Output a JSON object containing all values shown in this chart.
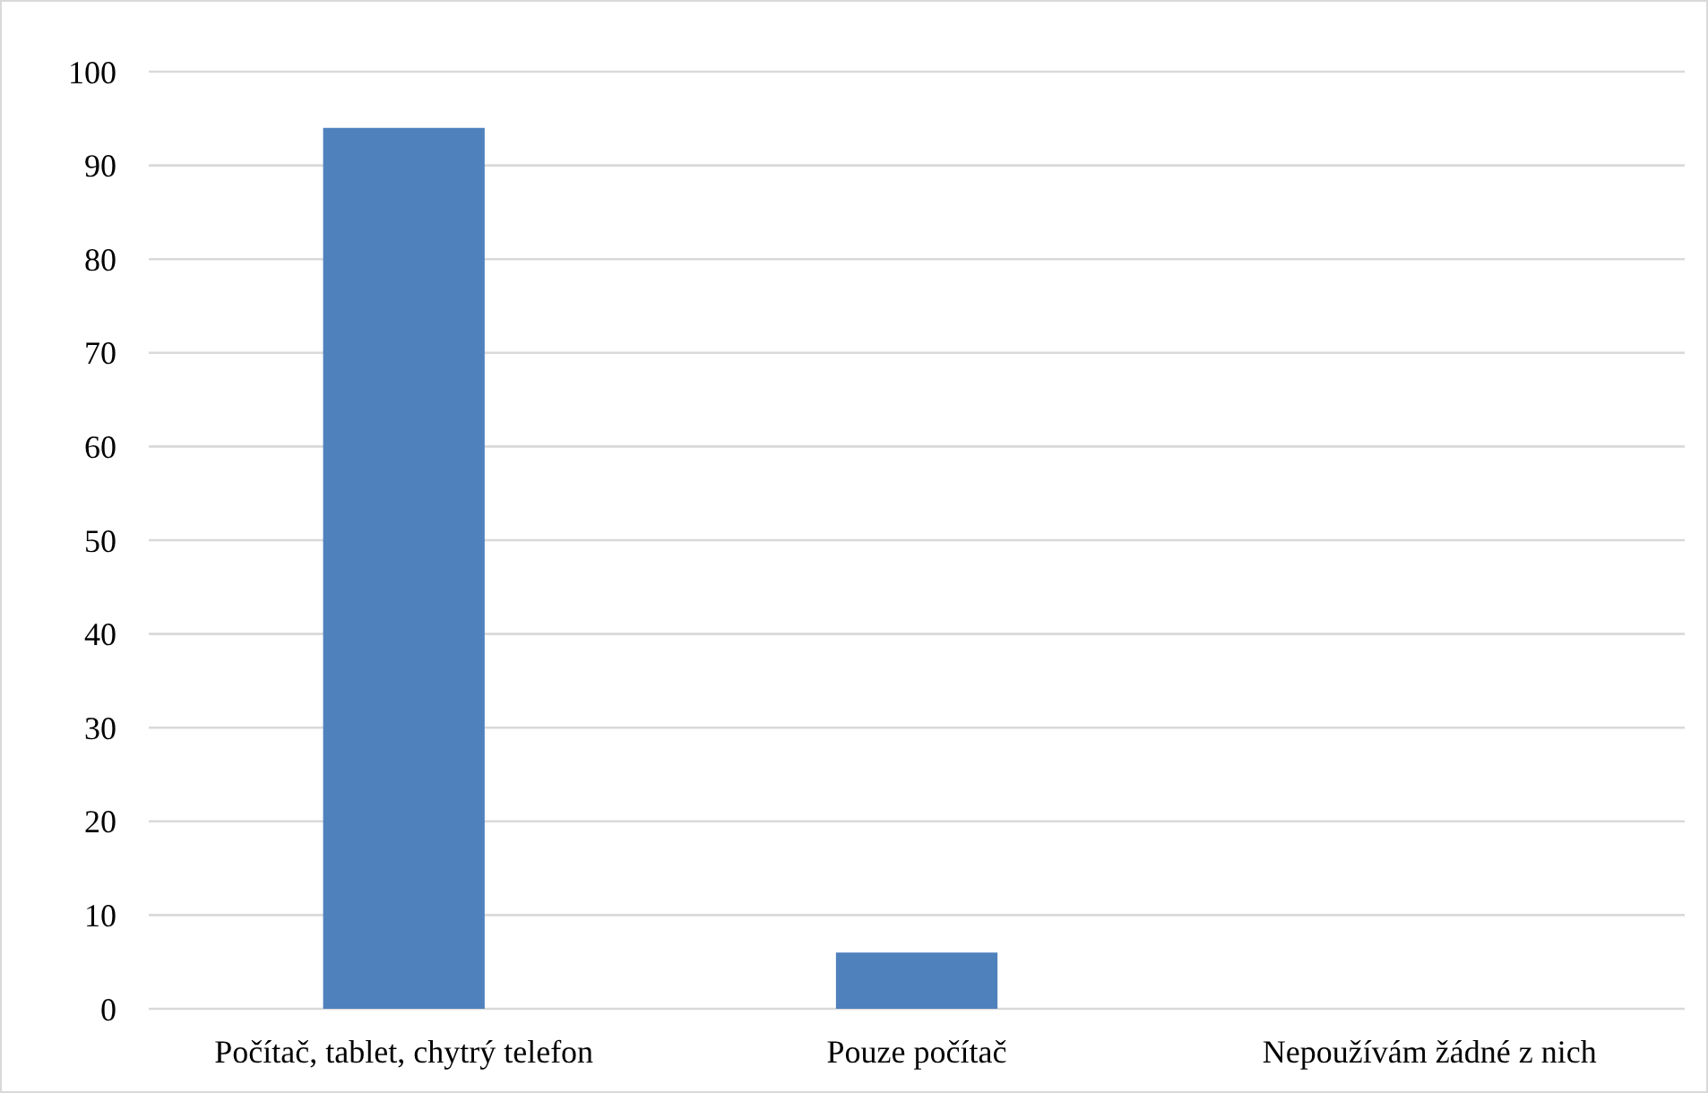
{
  "chart_data": {
    "type": "bar",
    "categories": [
      "Počítač, tablet, chytrý telefon",
      "Pouze počítač",
      "Nepoužívám žádné z nich"
    ],
    "values": [
      94,
      6,
      0
    ],
    "color": "#4f81bd",
    "ylim": [
      0,
      100
    ],
    "yticks": [
      0,
      10,
      20,
      30,
      40,
      50,
      60,
      70,
      80,
      90,
      100
    ],
    "grid": "y"
  }
}
